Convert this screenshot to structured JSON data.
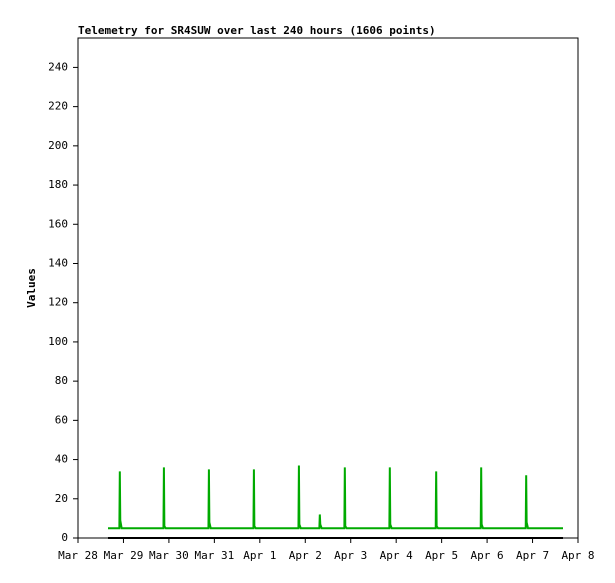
{
  "chart_data": {
    "type": "line",
    "title": "Telemetry for SR4SUW over last 240 hours (1606 points)",
    "y_label": "Values",
    "xlim": [
      0,
      11
    ],
    "xticks": [
      {
        "value": 0,
        "label": "Mar 28"
      },
      {
        "value": 1,
        "label": "Mar 29"
      },
      {
        "value": 2,
        "label": "Mar 30"
      },
      {
        "value": 3,
        "label": "Mar 31"
      },
      {
        "value": 4,
        "label": "Apr 1"
      },
      {
        "value": 5,
        "label": "Apr 2"
      },
      {
        "value": 6,
        "label": "Apr 3"
      },
      {
        "value": 7,
        "label": "Apr 4"
      },
      {
        "value": 8,
        "label": "Apr 5"
      },
      {
        "value": 9,
        "label": "Apr 6"
      },
      {
        "value": 10,
        "label": "Apr 7"
      },
      {
        "value": 11,
        "label": "Apr 8"
      }
    ],
    "ylim": [
      0,
      255
    ],
    "yticks": [
      0,
      20,
      40,
      60,
      80,
      100,
      120,
      140,
      160,
      180,
      200,
      220,
      240
    ],
    "series": [
      {
        "color": "#00aa00",
        "x": [
          0.66,
          0.91,
          0.92,
          0.93,
          0.96,
          1.88,
          1.885,
          1.89,
          1.9,
          1.93,
          2.87,
          2.88,
          2.89,
          2.92,
          3.86,
          3.865,
          3.87,
          3.88,
          3.91,
          4.85,
          4.86,
          4.87,
          4.9,
          5.31,
          5.32,
          5.33,
          5.36,
          5.86,
          5.87,
          5.875,
          5.88,
          5.91,
          6.85,
          6.86,
          6.87,
          6.9,
          7.87,
          7.875,
          7.88,
          7.89,
          7.92,
          8.86,
          8.87,
          8.88,
          8.91,
          9.85,
          9.86,
          9.87,
          9.9,
          10.67
        ],
        "values": [
          5,
          5,
          34,
          9,
          5,
          5,
          20,
          36,
          6,
          5,
          5,
          35,
          8,
          5,
          5,
          20,
          35,
          6,
          5,
          5,
          37,
          7,
          5,
          5,
          12,
          7,
          5,
          5,
          36,
          23,
          6,
          5,
          5,
          36,
          7,
          5,
          5,
          22,
          34,
          6,
          5,
          5,
          36,
          7,
          5,
          5,
          32,
          8,
          5,
          5
        ]
      },
      {
        "color": "#000000",
        "x": [
          0.66,
          10.67
        ],
        "values": [
          0,
          0
        ]
      }
    ]
  }
}
